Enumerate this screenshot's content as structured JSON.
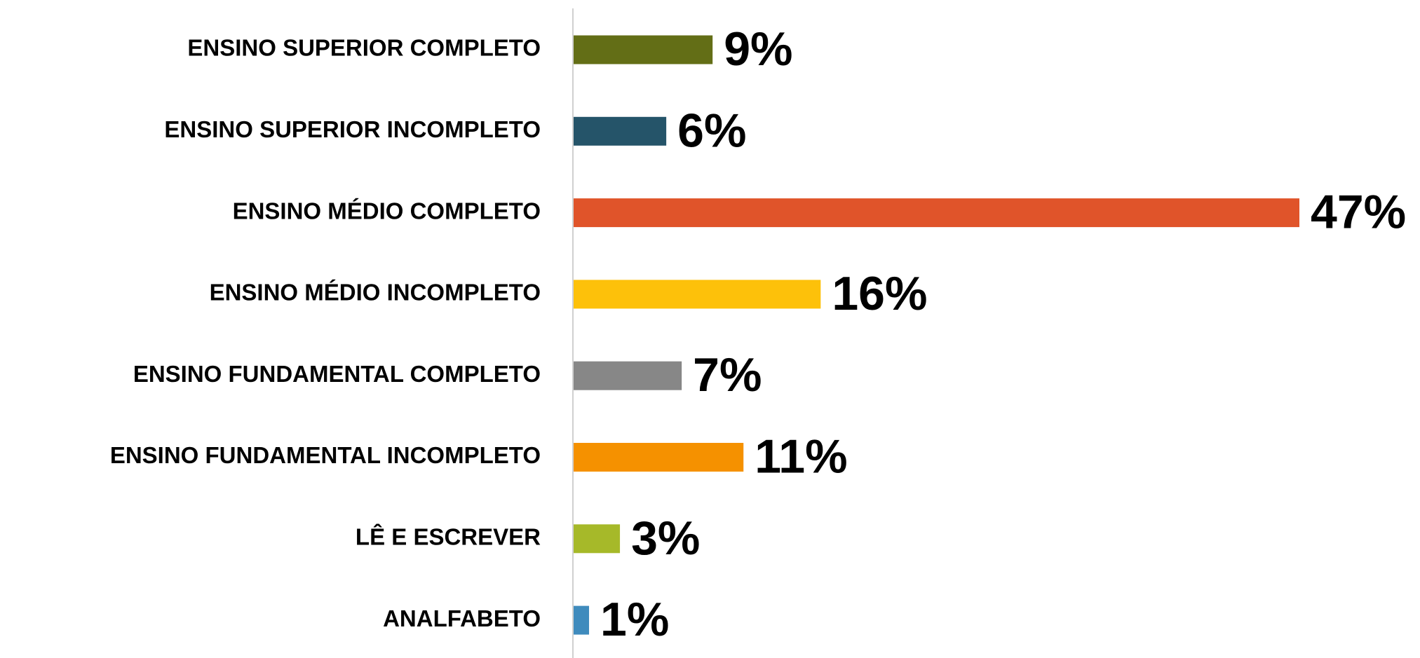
{
  "chart_data": {
    "type": "barh",
    "categories": [
      "ENSINO SUPERIOR COMPLETO",
      "ENSINO SUPERIOR INCOMPLETO",
      "ENSINO MÉDIO COMPLETO",
      "ENSINO MÉDIO INCOMPLETO",
      "ENSINO FUNDAMENTAL COMPLETO",
      "ENSINO FUNDAMENTAL INCOMPLETO",
      "LÊ E ESCREVER",
      "ANALFABETO"
    ],
    "values": [
      9,
      6,
      47,
      16,
      7,
      11,
      3,
      1
    ],
    "value_labels": [
      "9%",
      "6%",
      "47%",
      "16%",
      "7%",
      "11%",
      "3%",
      "1%"
    ],
    "colors": [
      "#636e16",
      "#255469",
      "#e0542a",
      "#fdc10a",
      "#878787",
      "#f59100",
      "#a6b929",
      "#3f8bbd"
    ]
  }
}
